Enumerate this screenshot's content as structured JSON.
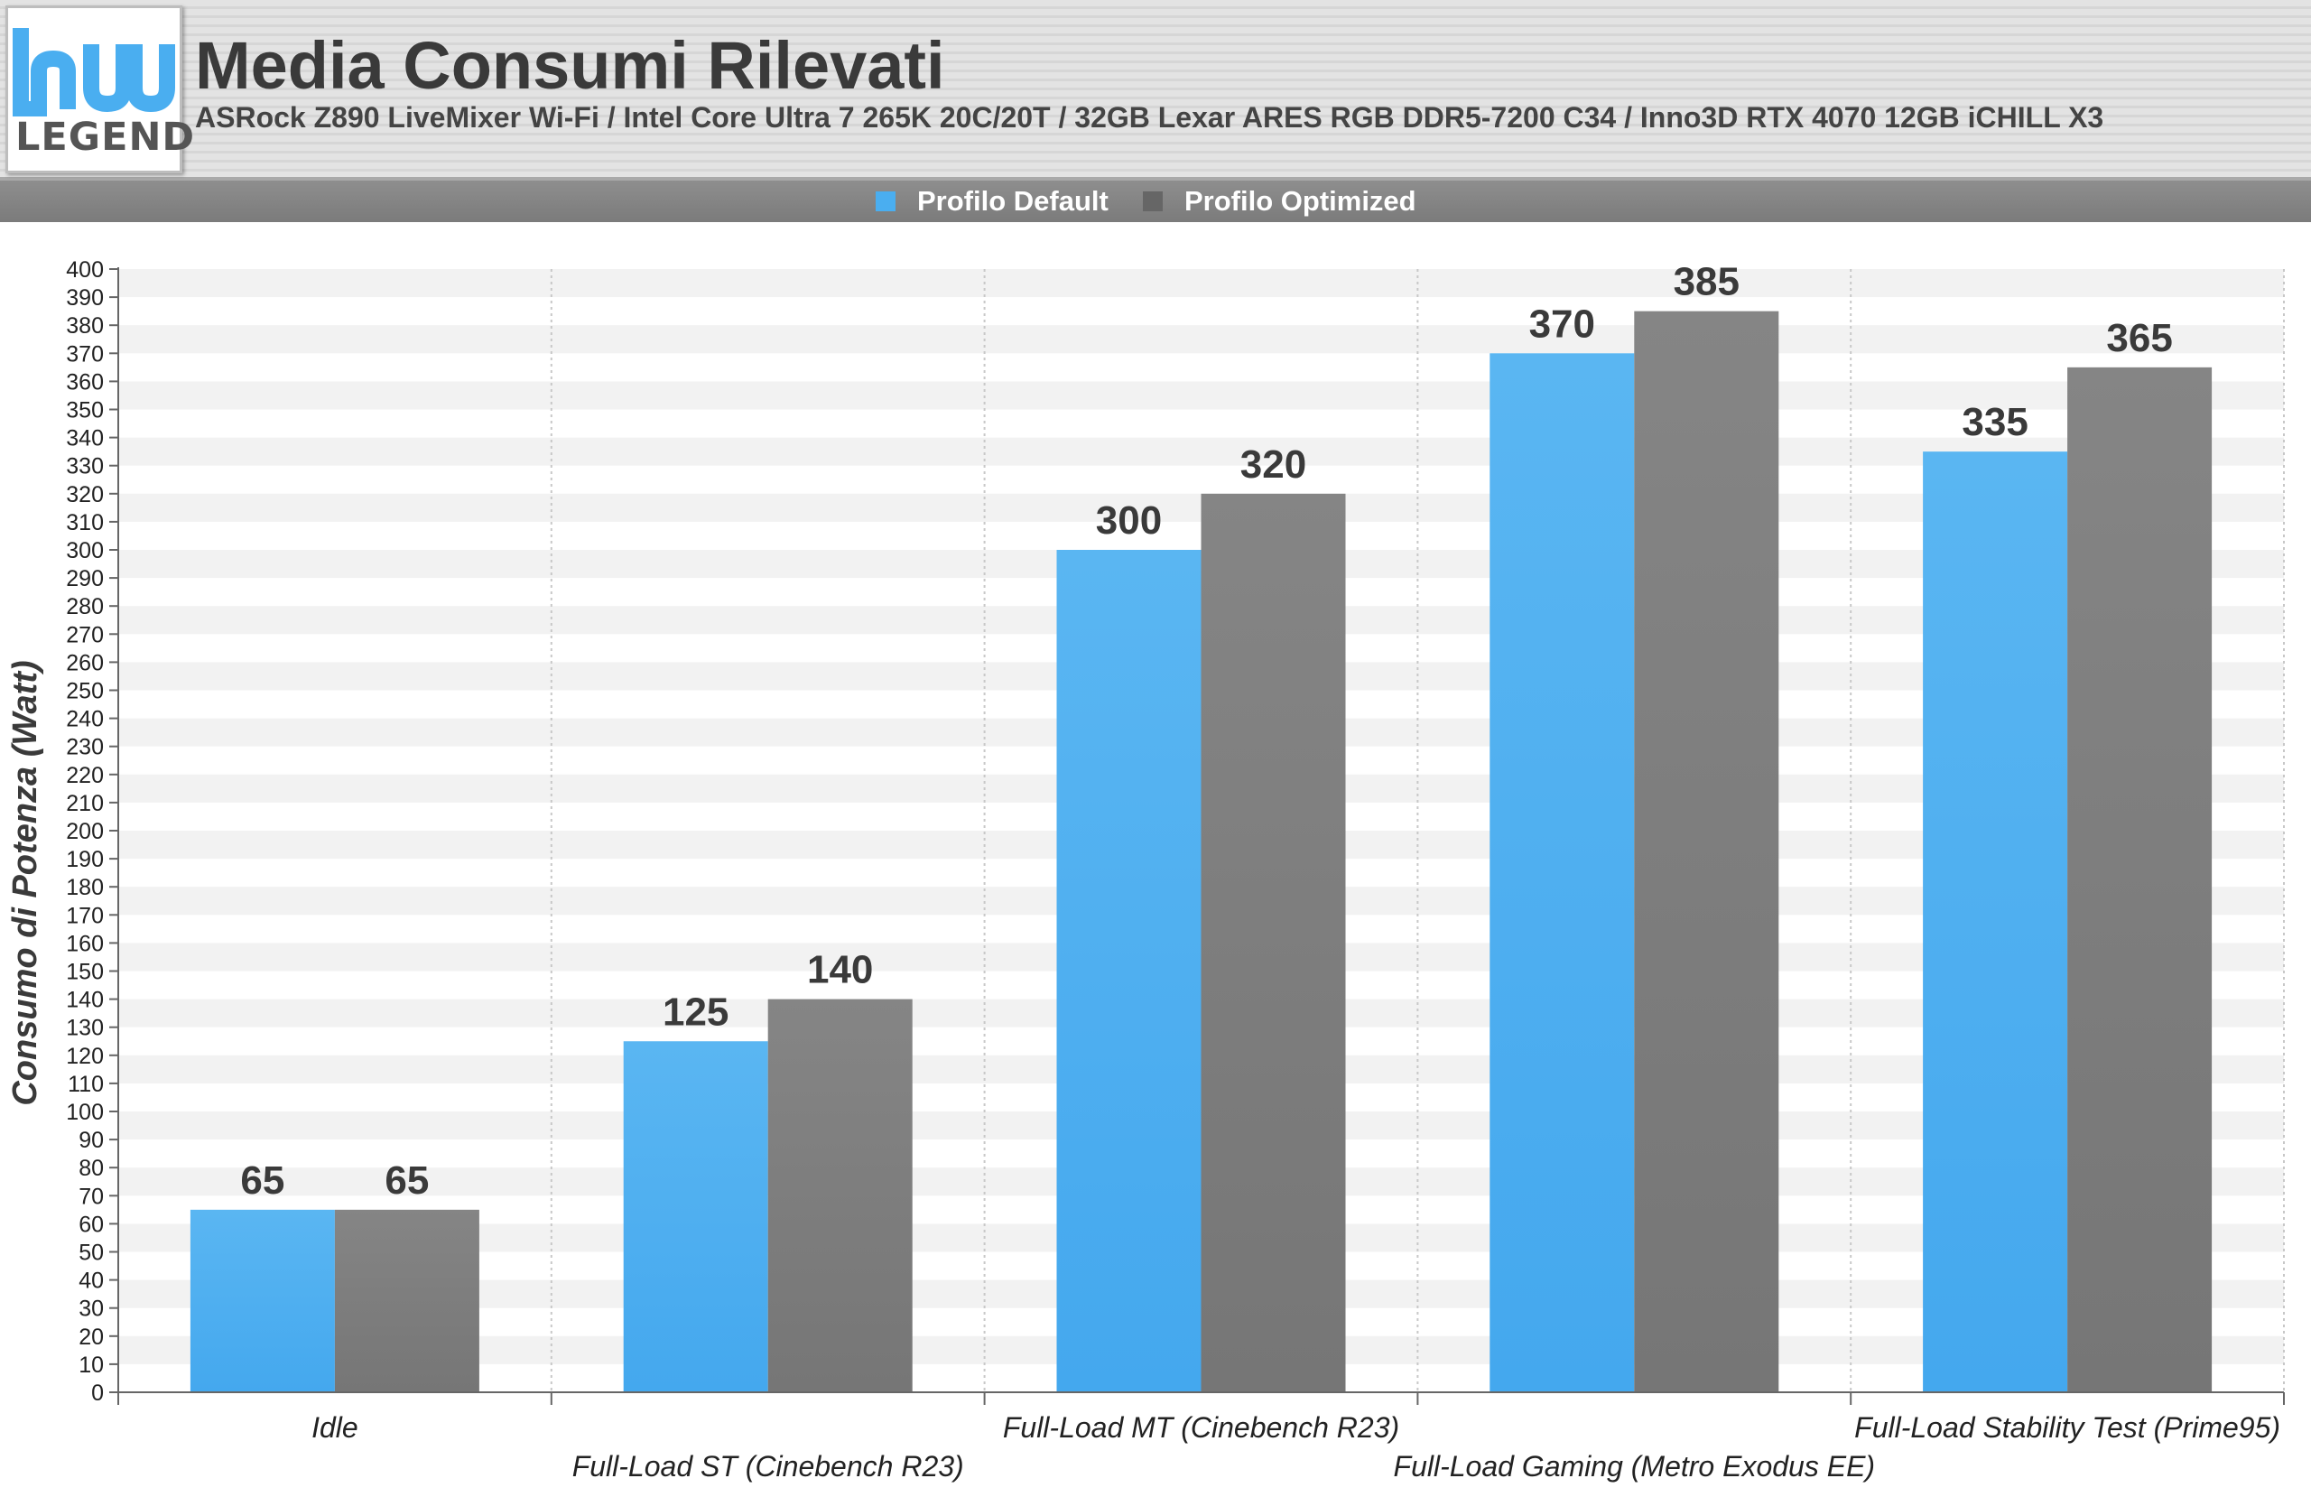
{
  "header": {
    "title": "Media Consumi Rilevati",
    "subtitle": "ASRock Z890 LiveMixer Wi-Fi / Intel Core Ultra 7 265K 20C/20T / 32GB Lexar ARES RGB DDR5-7200 C34 / Inno3D RTX 4070 12GB iCHILL X3",
    "logo_text": "LEGEND"
  },
  "chart_data": {
    "type": "bar",
    "title": "Media Consumi Rilevati",
    "subtitle": "ASRock Z890 LiveMixer Wi-Fi / Intel Core Ultra 7 265K 20C/20T / 32GB Lexar ARES RGB DDR5-7200 C34 / Inno3D RTX 4070 12GB iCHILL X3",
    "xlabel": "",
    "ylabel": "Consumo di Potenza (Watt)",
    "ylim": [
      0,
      400
    ],
    "ytick_step": 10,
    "grid": true,
    "legend_position": "top-center",
    "categories": [
      "Idle",
      "Full-Load ST (Cinebench R23)",
      "Full-Load MT (Cinebench R23)",
      "Full-Load Gaming (Metro Exodus EE)",
      "Full-Load Stability Test (Prime95)"
    ],
    "series": [
      {
        "name": "Profilo Default",
        "color": "#4aaef0",
        "values": [
          65,
          125,
          300,
          370,
          335
        ]
      },
      {
        "name": "Profilo Optimized",
        "color": "#7f7f7f",
        "values": [
          65,
          140,
          320,
          385,
          365
        ]
      }
    ]
  }
}
